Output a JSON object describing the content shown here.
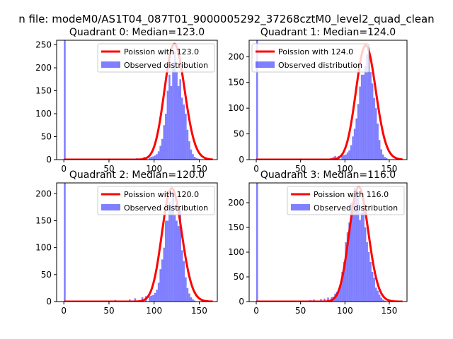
{
  "figure": {
    "suptitle": "n file: modeM0/AS1T04_087T01_9000005292_37268cztM0_level2_quad_clean"
  },
  "colors": {
    "observed": "#0000ff",
    "observed_opacity": 0.5,
    "poisson": "#ff0000"
  },
  "chart_data": [
    {
      "type": "bar",
      "title": "Quadrant 0: Median=123.0",
      "series": [
        {
          "name": "Poission with 123.0",
          "kind": "line",
          "mu": 123,
          "scale": 252
        },
        {
          "name": "Observed distribution",
          "kind": "histogram",
          "bins": [
            [
              0,
              2,
              265
            ],
            [
              52,
              54,
              2
            ],
            [
              72,
              74,
              2
            ],
            [
              80,
              82,
              3
            ],
            [
              88,
              90,
              6
            ],
            [
              90,
              92,
              5
            ],
            [
              94,
              96,
              4
            ],
            [
              96,
              98,
              6
            ],
            [
              98,
              100,
              7
            ],
            [
              100,
              102,
              9
            ],
            [
              102,
              104,
              12
            ],
            [
              104,
              106,
              18
            ],
            [
              106,
              108,
              30
            ],
            [
              108,
              110,
              45
            ],
            [
              110,
              112,
              75
            ],
            [
              112,
              114,
              100
            ],
            [
              114,
              116,
              150
            ],
            [
              116,
              118,
              185
            ],
            [
              118,
              120,
              160
            ],
            [
              120,
              122,
              200
            ],
            [
              122,
              124,
              235
            ],
            [
              124,
              126,
              190
            ],
            [
              126,
              128,
              160
            ],
            [
              128,
              130,
              175
            ],
            [
              130,
              132,
              135
            ],
            [
              132,
              134,
              120
            ],
            [
              134,
              136,
              100
            ],
            [
              136,
              138,
              65
            ],
            [
              138,
              140,
              40
            ],
            [
              140,
              142,
              22
            ],
            [
              142,
              144,
              12
            ],
            [
              144,
              146,
              6
            ],
            [
              146,
              148,
              3
            ],
            [
              148,
              150,
              2
            ]
          ]
        }
      ],
      "xlim": [
        -8,
        170
      ],
      "ylim": [
        0,
        260
      ],
      "xticks": [
        0,
        50,
        100,
        150
      ],
      "yticks": [
        0,
        50,
        100,
        150,
        200,
        250
      ],
      "legend": "top-right"
    },
    {
      "type": "bar",
      "title": "Quadrant 1: Median=124.0",
      "series": [
        {
          "name": "Poission with 124.0",
          "kind": "line",
          "mu": 124,
          "scale": 222
        },
        {
          "name": "Observed distribution",
          "kind": "histogram",
          "bins": [
            [
              0,
              2,
              240
            ],
            [
              80,
              82,
              2
            ],
            [
              84,
              86,
              3
            ],
            [
              86,
              88,
              5
            ],
            [
              88,
              90,
              7
            ],
            [
              92,
              94,
              7
            ],
            [
              96,
              98,
              8
            ],
            [
              98,
              100,
              9
            ],
            [
              100,
              102,
              10
            ],
            [
              102,
              104,
              14
            ],
            [
              104,
              106,
              18
            ],
            [
              106,
              108,
              28
            ],
            [
              108,
              110,
              45
            ],
            [
              110,
              112,
              60
            ],
            [
              112,
              114,
              80
            ],
            [
              114,
              116,
              108
            ],
            [
              116,
              118,
              142
            ],
            [
              118,
              120,
              165
            ],
            [
              120,
              122,
              165
            ],
            [
              122,
              124,
              182
            ],
            [
              124,
              126,
              205
            ],
            [
              126,
              128,
              218
            ],
            [
              128,
              130,
              170
            ],
            [
              130,
              132,
              148
            ],
            [
              132,
              134,
              120
            ],
            [
              134,
              136,
              100
            ],
            [
              136,
              138,
              70
            ],
            [
              138,
              140,
              38
            ],
            [
              140,
              142,
              20
            ],
            [
              142,
              144,
              10
            ],
            [
              144,
              146,
              5
            ],
            [
              146,
              148,
              3
            ]
          ]
        }
      ],
      "xlim": [
        -8,
        170
      ],
      "ylim": [
        0,
        232
      ],
      "xticks": [
        0,
        50,
        100,
        150
      ],
      "yticks": [
        0,
        50,
        100,
        150,
        200
      ],
      "legend": "top-left"
    },
    {
      "type": "bar",
      "title": "Quadrant 2: Median=120.0",
      "series": [
        {
          "name": "Poission with 120.0",
          "kind": "line",
          "mu": 120,
          "scale": 210
        },
        {
          "name": "Observed distribution",
          "kind": "histogram",
          "bins": [
            [
              0,
              2,
              230
            ],
            [
              52,
              54,
              2
            ],
            [
              56,
              58,
              3
            ],
            [
              72,
              74,
              4
            ],
            [
              78,
              80,
              6
            ],
            [
              86,
              88,
              8
            ],
            [
              90,
              92,
              10
            ],
            [
              94,
              96,
              10
            ],
            [
              96,
              98,
              11
            ],
            [
              98,
              100,
              12
            ],
            [
              100,
              102,
              16
            ],
            [
              102,
              104,
              22
            ],
            [
              104,
              106,
              35
            ],
            [
              106,
              108,
              60
            ],
            [
              108,
              110,
              78
            ],
            [
              110,
              112,
              100
            ],
            [
              112,
              114,
              150
            ],
            [
              114,
              116,
              150
            ],
            [
              116,
              118,
              185
            ],
            [
              118,
              120,
              180
            ],
            [
              120,
              122,
              205
            ],
            [
              122,
              124,
              160
            ],
            [
              124,
              126,
              150
            ],
            [
              126,
              128,
              140
            ],
            [
              128,
              130,
              175
            ],
            [
              130,
              132,
              95
            ],
            [
              132,
              134,
              75
            ],
            [
              134,
              136,
              45
            ],
            [
              136,
              138,
              25
            ],
            [
              138,
              140,
              15
            ],
            [
              140,
              142,
              8
            ],
            [
              142,
              144,
              4
            ],
            [
              144,
              146,
              2
            ]
          ]
        }
      ],
      "xlim": [
        -8,
        170
      ],
      "ylim": [
        0,
        220
      ],
      "xticks": [
        0,
        50,
        100,
        150
      ],
      "yticks": [
        0,
        50,
        100,
        150,
        200
      ],
      "legend": "top-right"
    },
    {
      "type": "bar",
      "title": "Quadrant 3: Median=116.0",
      "series": [
        {
          "name": "Poission with 116.0",
          "kind": "line",
          "mu": 116,
          "scale": 232
        },
        {
          "name": "Observed distribution",
          "kind": "histogram",
          "bins": [
            [
              0,
              2,
              245
            ],
            [
              56,
              58,
              2
            ],
            [
              60,
              62,
              3
            ],
            [
              64,
              66,
              4
            ],
            [
              72,
              74,
              5
            ],
            [
              76,
              78,
              6
            ],
            [
              80,
              82,
              8
            ],
            [
              84,
              86,
              9
            ],
            [
              86,
              88,
              10
            ],
            [
              88,
              90,
              16
            ],
            [
              90,
              92,
              20
            ],
            [
              92,
              94,
              25
            ],
            [
              94,
              96,
              35
            ],
            [
              96,
              98,
              60
            ],
            [
              98,
              100,
              80
            ],
            [
              100,
              102,
              120
            ],
            [
              102,
              104,
              140
            ],
            [
              104,
              106,
              160
            ],
            [
              106,
              108,
              200
            ],
            [
              108,
              110,
              185
            ],
            [
              110,
              112,
              230
            ],
            [
              112,
              114,
              225
            ],
            [
              114,
              116,
              215
            ],
            [
              116,
              118,
              165
            ],
            [
              118,
              120,
              180
            ],
            [
              120,
              122,
              200
            ],
            [
              122,
              124,
              150
            ],
            [
              124,
              126,
              120
            ],
            [
              126,
              128,
              100
            ],
            [
              128,
              130,
              80
            ],
            [
              130,
              132,
              60
            ],
            [
              132,
              134,
              48
            ],
            [
              134,
              136,
              28
            ],
            [
              136,
              138,
              22
            ],
            [
              138,
              140,
              14
            ],
            [
              140,
              142,
              8
            ],
            [
              142,
              144,
              4
            ],
            [
              144,
              146,
              2
            ]
          ]
        }
      ],
      "xlim": [
        -8,
        170
      ],
      "ylim": [
        0,
        240
      ],
      "xticks": [
        0,
        50,
        100,
        150
      ],
      "yticks": [
        0,
        50,
        100,
        150,
        200
      ],
      "legend": "top-right"
    }
  ]
}
